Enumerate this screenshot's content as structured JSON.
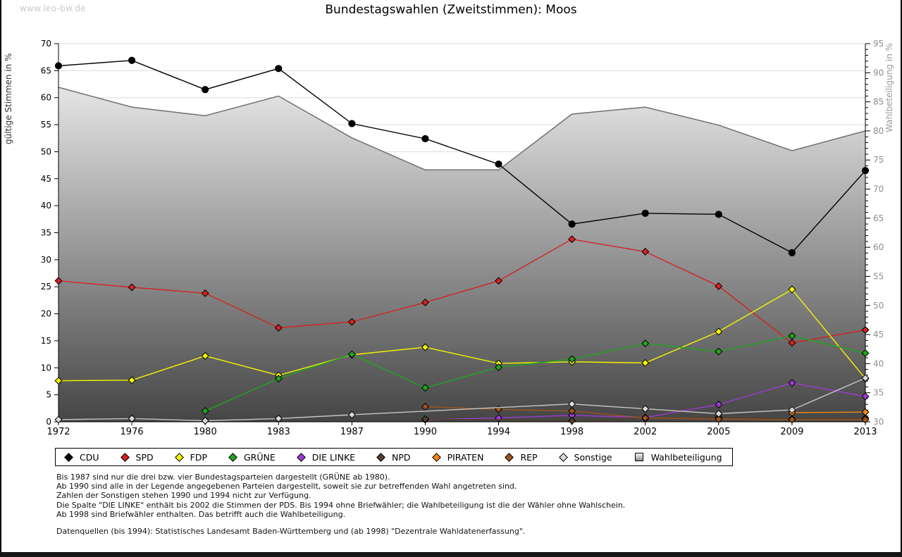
{
  "watermark": "www.leo-bw.de",
  "title": "Bundestagswahlen (Zweitstimmen): Moos",
  "chart_data": {
    "type": "line",
    "title": "Bundestagswahlen (Zweitstimmen): Moos",
    "x_categories": [
      "1972",
      "1976",
      "1980",
      "1983",
      "1987",
      "1990",
      "1994",
      "1998",
      "2002",
      "2005",
      "2009",
      "2013"
    ],
    "left_axis": {
      "label": "gültige Stimmen in %",
      "min": 0,
      "max": 70,
      "tick_step": 5
    },
    "right_axis": {
      "label": "Wahlbeteiligung in %",
      "min": 30,
      "max": 95,
      "tick_step": 5,
      "minor_tick_step": 1
    },
    "grid": true,
    "legend_position": "bottom",
    "area_gradient_top": "#fafafa",
    "area_gradient_bottom": "#454545",
    "area_stroke": "#6f6f6f",
    "gridline_color": "#dcdcdc",
    "series": [
      {
        "name": "Wahlbeteiligung",
        "type": "area",
        "axis": "right",
        "color": "#8f8f8f",
        "values": [
          87.5,
          84.1,
          82.6,
          86.0,
          78.8,
          73.3,
          73.3,
          82.9,
          84.1,
          81.0,
          76.6,
          80.0
        ]
      },
      {
        "name": "CDU",
        "type": "line",
        "axis": "left",
        "color": "#000000",
        "marker": "circle",
        "values": [
          65.9,
          66.9,
          61.5,
          65.4,
          55.2,
          52.4,
          47.7,
          36.6,
          38.6,
          38.4,
          31.3,
          46.5
        ]
      },
      {
        "name": "SPD",
        "type": "line",
        "axis": "left",
        "color": "#d42222",
        "marker": "diamond",
        "values": [
          26.1,
          24.9,
          23.8,
          17.4,
          18.5,
          22.1,
          26.1,
          33.8,
          31.5,
          25.1,
          14.6,
          17.0
        ]
      },
      {
        "name": "FDP",
        "type": "line",
        "axis": "left",
        "color": "#f5f500",
        "marker": "diamond",
        "values": [
          7.6,
          7.7,
          12.2,
          8.6,
          12.4,
          13.8,
          10.8,
          11.1,
          10.9,
          16.7,
          24.5,
          8.0
        ]
      },
      {
        "name": "GRÜNE",
        "type": "line",
        "axis": "left",
        "color": "#1fa51f",
        "marker": "diamond",
        "values": [
          null,
          null,
          2.0,
          8.0,
          12.5,
          6.3,
          10.1,
          11.6,
          14.5,
          13.0,
          15.9,
          12.7
        ]
      },
      {
        "name": "DIE LINKE",
        "type": "line",
        "axis": "left",
        "color": "#9c3bd4",
        "marker": "diamond",
        "values": [
          null,
          null,
          null,
          null,
          null,
          0.4,
          0.7,
          1.2,
          0.8,
          3.2,
          7.2,
          4.7
        ]
      },
      {
        "name": "NPD",
        "type": "line",
        "axis": "left",
        "color": "#54402a",
        "marker": "diamond",
        "values": [
          null,
          null,
          null,
          null,
          null,
          0.5,
          null,
          0.2,
          0.6,
          0.8,
          0.5,
          0.7
        ]
      },
      {
        "name": "PIRATEN",
        "type": "line",
        "axis": "left",
        "color": "#f28618",
        "marker": "diamond",
        "values": [
          null,
          null,
          null,
          null,
          null,
          null,
          null,
          null,
          null,
          null,
          1.7,
          1.8
        ]
      },
      {
        "name": "REP",
        "type": "line",
        "axis": "left",
        "color": "#9e551e",
        "marker": "diamond",
        "values": [
          null,
          null,
          null,
          null,
          null,
          2.8,
          2.3,
          2.0,
          0.7,
          0.5,
          0.4,
          0.4
        ]
      },
      {
        "name": "Sonstige",
        "type": "line",
        "axis": "left",
        "color": "#d9d9d9",
        "line_color": "#c6c6c6",
        "marker": "diamond",
        "values": [
          0.4,
          0.6,
          0.2,
          0.6,
          1.3,
          null,
          null,
          3.3,
          2.4,
          1.5,
          2.2,
          8.1
        ]
      }
    ]
  },
  "legend": {
    "items": [
      {
        "label": "CDU",
        "color": "#000000",
        "marker": "diamond"
      },
      {
        "label": "SPD",
        "color": "#d42222",
        "marker": "diamond"
      },
      {
        "label": "FDP",
        "color": "#f5f500",
        "marker": "diamond"
      },
      {
        "label": "GRÜNE",
        "color": "#1fa51f",
        "marker": "diamond"
      },
      {
        "label": "DIE LINKE",
        "color": "#9c3bd4",
        "marker": "diamond"
      },
      {
        "label": "NPD",
        "color": "#54402a",
        "marker": "diamond"
      },
      {
        "label": "PIRATEN",
        "color": "#f28618",
        "marker": "diamond"
      },
      {
        "label": "REP",
        "color": "#9e551e",
        "marker": "diamond"
      },
      {
        "label": "Sonstige",
        "color": "#d9d9d9",
        "marker": "diamond"
      },
      {
        "label": "Wahlbeteiligung",
        "color": "gradient",
        "marker": "square"
      }
    ]
  },
  "footnotes": [
    "Bis 1987 sind nur die drei bzw. vier Bundestagsparteien dargestellt (GRÜNE ab 1980).",
    "Ab 1990 sind alle in der Legende angegebenen Parteien dargestellt, soweit sie zur betreffenden Wahl angetreten sind.",
    "Zahlen der Sonstigen stehen 1990 und 1994 nicht zur Verfügung.",
    "Die Spalte \"DIE LINKE\" enthält bis 2002 die Stimmen der PDS. Bis 1994 ohne Briefwähler; die Wahlbeteiligung ist die der Wähler ohne Wahlschein.",
    "Ab 1998 sind Briefwähler enthalten. Das betrifft auch die Wahlbeteiligung."
  ],
  "datasource": "Datenquellen (bis 1994): Statistisches Landesamt Baden-Württemberg und (ab 1998) \"Dezentrale Wahldatenerfassung\"."
}
